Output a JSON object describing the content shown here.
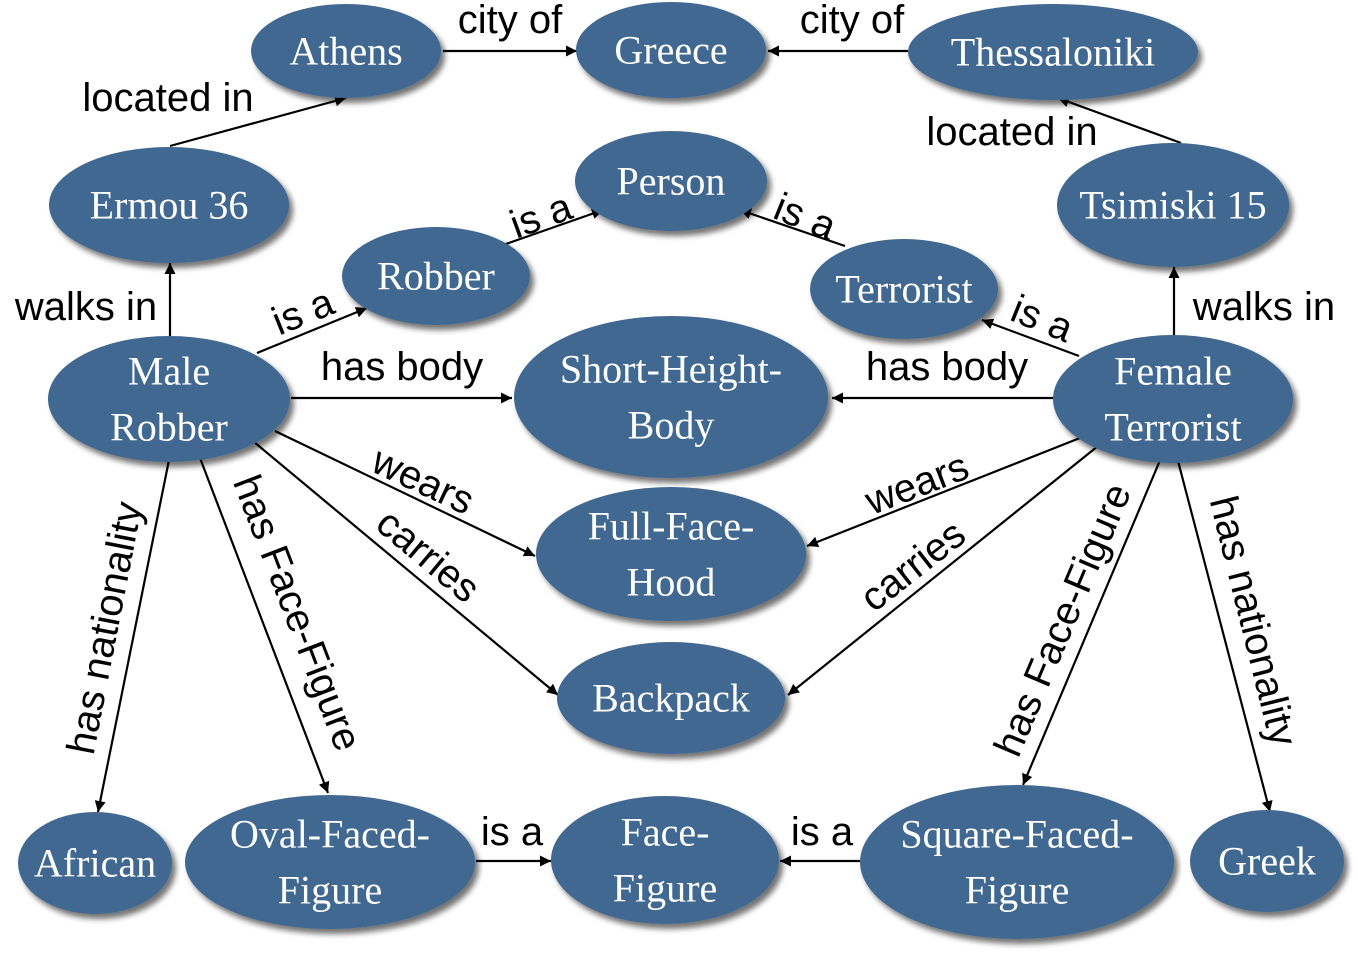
{
  "colors": {
    "node_fill": "#3F6790",
    "node_shadow": "#8A8A8A",
    "edge": "#000000",
    "node_text": "#FFFFFF"
  },
  "nodes": [
    {
      "id": "athens",
      "lines": [
        "Athens"
      ]
    },
    {
      "id": "greece",
      "lines": [
        "Greece"
      ]
    },
    {
      "id": "thessaloniki",
      "lines": [
        "Thessaloniki"
      ]
    },
    {
      "id": "ermou",
      "lines": [
        "Ermou 36"
      ]
    },
    {
      "id": "person",
      "lines": [
        "Person"
      ]
    },
    {
      "id": "tsimiski",
      "lines": [
        "Tsimiski 15"
      ]
    },
    {
      "id": "robber",
      "lines": [
        "Robber"
      ]
    },
    {
      "id": "terrorist",
      "lines": [
        "Terrorist"
      ]
    },
    {
      "id": "male_robber",
      "lines": [
        "Male",
        "Robber"
      ]
    },
    {
      "id": "short_height_body",
      "lines": [
        "Short-Height-",
        "Body"
      ]
    },
    {
      "id": "female_terrorist",
      "lines": [
        "Female",
        "Terrorist"
      ]
    },
    {
      "id": "full_face_hood",
      "lines": [
        "Full-Face-",
        "Hood"
      ]
    },
    {
      "id": "backpack",
      "lines": [
        "Backpack"
      ]
    },
    {
      "id": "african",
      "lines": [
        "African"
      ]
    },
    {
      "id": "oval_faced_figure",
      "lines": [
        "Oval-Faced-",
        "Figure"
      ]
    },
    {
      "id": "face_figure",
      "lines": [
        "Face-",
        "Figure"
      ]
    },
    {
      "id": "square_faced_figure",
      "lines": [
        "Square-Faced-",
        "Figure"
      ]
    },
    {
      "id": "greek",
      "lines": [
        "Greek"
      ]
    }
  ],
  "edges": [
    {
      "id": "athens-city-of-greece",
      "source": "athens",
      "target": "greece",
      "label": "city of"
    },
    {
      "id": "thessaloniki-city-of-greece",
      "source": "thessaloniki",
      "target": "greece",
      "label": "city of"
    },
    {
      "id": "ermou-located-in-athens",
      "source": "ermou",
      "target": "athens",
      "label": "located in"
    },
    {
      "id": "tsimiski-located-in-thessaloniki",
      "source": "tsimiski",
      "target": "thessaloniki",
      "label": "located in"
    },
    {
      "id": "male-robber-walks-in-ermou",
      "source": "male_robber",
      "target": "ermou",
      "label": "walks in"
    },
    {
      "id": "female-terrorist-walks-in-tsimiski",
      "source": "female_terrorist",
      "target": "tsimiski",
      "label": "walks in"
    },
    {
      "id": "male-robber-is-a-robber",
      "source": "male_robber",
      "target": "robber",
      "label": "is a"
    },
    {
      "id": "robber-is-a-person",
      "source": "robber",
      "target": "person",
      "label": "is a"
    },
    {
      "id": "terrorist-is-a-person",
      "source": "terrorist",
      "target": "person",
      "label": "is a"
    },
    {
      "id": "female-terrorist-is-a-terrorist",
      "source": "female_terrorist",
      "target": "terrorist",
      "label": "is a"
    },
    {
      "id": "male-robber-has-body",
      "source": "male_robber",
      "target": "short_height_body",
      "label": "has body"
    },
    {
      "id": "female-terrorist-has-body",
      "source": "female_terrorist",
      "target": "short_height_body",
      "label": "has body"
    },
    {
      "id": "male-robber-wears",
      "source": "male_robber",
      "target": "full_face_hood",
      "label": "wears"
    },
    {
      "id": "female-terrorist-wears",
      "source": "female_terrorist",
      "target": "full_face_hood",
      "label": "wears"
    },
    {
      "id": "male-robber-carries",
      "source": "male_robber",
      "target": "backpack",
      "label": "carries"
    },
    {
      "id": "female-terrorist-carries",
      "source": "female_terrorist",
      "target": "backpack",
      "label": "carries"
    },
    {
      "id": "male-robber-has-nationality",
      "source": "male_robber",
      "target": "african",
      "label": "has nationality"
    },
    {
      "id": "male-robber-has-face-figure",
      "source": "male_robber",
      "target": "oval_faced_figure",
      "label": "has Face-Figure"
    },
    {
      "id": "female-terrorist-has-face-figure",
      "source": "female_terrorist",
      "target": "square_faced_figure",
      "label": "has Face-Figure"
    },
    {
      "id": "female-terrorist-has-nationality",
      "source": "female_terrorist",
      "target": "greek",
      "label": "has nationality"
    },
    {
      "id": "oval-is-a-face-figure",
      "source": "oval_faced_figure",
      "target": "face_figure",
      "label": "is a"
    },
    {
      "id": "square-is-a-face-figure",
      "source": "square_faced_figure",
      "target": "face_figure",
      "label": "is a"
    }
  ]
}
